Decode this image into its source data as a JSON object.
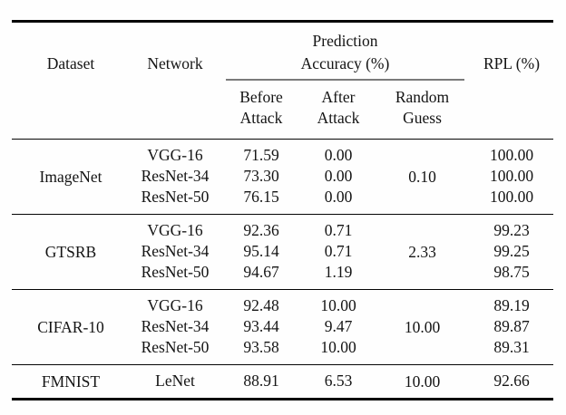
{
  "table": {
    "header": {
      "dataset": "Dataset",
      "network": "Network",
      "accuracy_group": {
        "line1": "Prediction",
        "line2": "Accuracy (%)"
      },
      "rpl": "RPL (%)",
      "sub": [
        {
          "line1": "Before",
          "line2": "Attack"
        },
        {
          "line1": "After",
          "line2": "Attack"
        },
        {
          "line1": "Random",
          "line2": "Guess"
        }
      ]
    },
    "groups": [
      {
        "dataset": "ImageNet",
        "random_guess": "0.10",
        "rows": [
          {
            "network": "VGG-16",
            "before": "71.59",
            "after": "0.00",
            "rpl": "100.00"
          },
          {
            "network": "ResNet-34",
            "before": "73.30",
            "after": "0.00",
            "rpl": "100.00"
          },
          {
            "network": "ResNet-50",
            "before": "76.15",
            "after": "0.00",
            "rpl": "100.00"
          }
        ]
      },
      {
        "dataset": "GTSRB",
        "random_guess": "2.33",
        "rows": [
          {
            "network": "VGG-16",
            "before": "92.36",
            "after": "0.71",
            "rpl": "99.23"
          },
          {
            "network": "ResNet-34",
            "before": "95.14",
            "after": "0.71",
            "rpl": "99.25"
          },
          {
            "network": "ResNet-50",
            "before": "94.67",
            "after": "1.19",
            "rpl": "98.75"
          }
        ]
      },
      {
        "dataset": "CIFAR-10",
        "random_guess": "10.00",
        "rows": [
          {
            "network": "VGG-16",
            "before": "92.48",
            "after": "10.00",
            "rpl": "89.19"
          },
          {
            "network": "ResNet-34",
            "before": "93.44",
            "after": "9.47",
            "rpl": "89.87"
          },
          {
            "network": "ResNet-50",
            "before": "93.58",
            "after": "10.00",
            "rpl": "89.31"
          }
        ]
      },
      {
        "dataset": "FMNIST",
        "random_guess": "10.00",
        "rows": [
          {
            "network": "LeNet",
            "before": "88.91",
            "after": "6.53",
            "rpl": "92.66"
          }
        ]
      }
    ],
    "colors": {
      "rule": "#050505",
      "cmidrule": "#7a7a7a",
      "text": "#141414",
      "background": "#fefefe"
    }
  }
}
